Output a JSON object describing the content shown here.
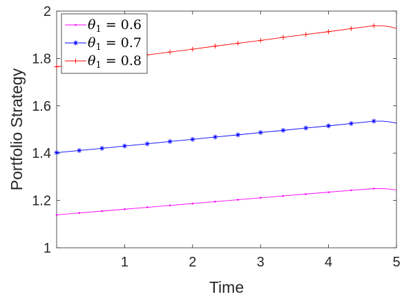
{
  "chart_data": {
    "type": "line",
    "title": "",
    "xlabel": "Time",
    "ylabel": "Portfolio Strategy",
    "xlim": [
      0,
      5
    ],
    "ylim": [
      1,
      2
    ],
    "xticks": [
      "1",
      "2",
      "3",
      "4",
      "5"
    ],
    "yticks": [
      "1",
      "1.2",
      "1.4",
      "1.6",
      "1.8",
      "2"
    ],
    "grid": false,
    "legend_position": "top-left",
    "series": [
      {
        "name": "θ1 = 0.6",
        "legend": {
          "symbol": "θ",
          "sub": "1",
          "rest": " = 0.6"
        },
        "color": "#ff00ff",
        "marker": "dot",
        "x": [
          0,
          0.333,
          0.667,
          1.0,
          1.333,
          1.667,
          2.0,
          2.333,
          2.667,
          3.0,
          3.333,
          3.667,
          4.0,
          4.333,
          4.667,
          4.8,
          4.9,
          5.0
        ],
        "y": [
          1.139,
          1.147,
          1.155,
          1.163,
          1.171,
          1.179,
          1.187,
          1.195,
          1.203,
          1.211,
          1.219,
          1.227,
          1.235,
          1.243,
          1.25,
          1.25,
          1.248,
          1.244
        ]
      },
      {
        "name": "θ1 = 0.7",
        "legend": {
          "symbol": "θ",
          "sub": "1",
          "rest": " = 0.7"
        },
        "color": "#0000ff",
        "marker": "asterisk",
        "x": [
          0,
          0.333,
          0.667,
          1.0,
          1.333,
          1.667,
          2.0,
          2.333,
          2.667,
          3.0,
          3.333,
          3.667,
          4.0,
          4.333,
          4.667,
          4.8,
          4.9,
          5.0
        ],
        "y": [
          1.402,
          1.411,
          1.42,
          1.43,
          1.439,
          1.449,
          1.458,
          1.468,
          1.477,
          1.487,
          1.496,
          1.506,
          1.515,
          1.525,
          1.535,
          1.535,
          1.532,
          1.527
        ]
      },
      {
        "name": "θ1 = 0.8",
        "legend": {
          "symbol": "θ",
          "sub": "1",
          "rest": " = 0.8"
        },
        "color": "#ff0000",
        "marker": "plus",
        "x": [
          0,
          0.333,
          0.667,
          1.0,
          1.333,
          1.667,
          2.0,
          2.333,
          2.667,
          3.0,
          3.333,
          3.667,
          4.0,
          4.333,
          4.667,
          4.8,
          4.9,
          5.0
        ],
        "y": [
          1.765,
          1.777,
          1.79,
          1.802,
          1.815,
          1.827,
          1.839,
          1.852,
          1.864,
          1.876,
          1.889,
          1.901,
          1.913,
          1.926,
          1.938,
          1.938,
          1.934,
          1.927
        ]
      }
    ]
  }
}
